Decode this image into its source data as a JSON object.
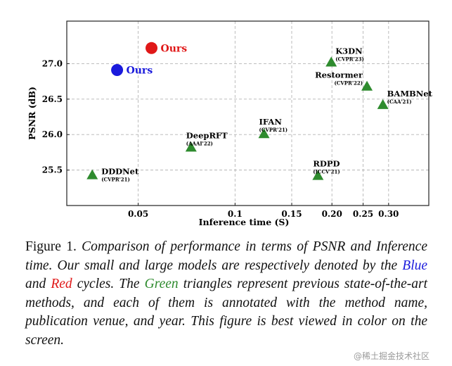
{
  "chart_data": {
    "type": "scatter",
    "xlabel": "Inference time (S)",
    "ylabel": "PSNR (dB)",
    "xscale": "log",
    "xlim": [
      0.03,
      0.4
    ],
    "ylim": [
      25.0,
      27.6
    ],
    "xticks": [
      0.05,
      0.1,
      0.15,
      0.2,
      0.25,
      0.3
    ],
    "xtick_labels": [
      "0.05",
      "0.1",
      "0.15",
      "0.20",
      "0.25",
      "0.30"
    ],
    "yticks": [
      25.5,
      26.0,
      26.5,
      27.0
    ],
    "ytick_labels": [
      "25.5",
      "26.0",
      "26.5",
      "27.0"
    ],
    "grid": true,
    "points": [
      {
        "name": "Ours",
        "venue": "",
        "x": 0.055,
        "y": 27.22,
        "marker": "circle",
        "color": "#e01818",
        "label_pos": "right"
      },
      {
        "name": "Ours",
        "venue": "",
        "x": 0.043,
        "y": 26.91,
        "marker": "circle",
        "color": "#1a1adc",
        "label_pos": "right"
      },
      {
        "name": "K3DN",
        "venue": "(CVPR'23)",
        "x": 0.199,
        "y": 27.02,
        "marker": "triangle",
        "color": "#2e8b2e",
        "label_pos": "above-right"
      },
      {
        "name": "Restormer",
        "venue": "(CVPR'22)",
        "x": 0.257,
        "y": 26.68,
        "marker": "triangle",
        "color": "#2e8b2e",
        "label_pos": "above-left"
      },
      {
        "name": "BAMBNet",
        "venue": "(CAA'21)",
        "x": 0.288,
        "y": 26.42,
        "marker": "triangle",
        "color": "#2e8b2e",
        "label_pos": "above-right"
      },
      {
        "name": "DeepRFT",
        "venue": "(AAAI'22)",
        "x": 0.073,
        "y": 25.82,
        "marker": "triangle",
        "color": "#2e8b2e",
        "label_pos": "above"
      },
      {
        "name": "IFAN",
        "venue": "(CVPR'21)",
        "x": 0.123,
        "y": 26.01,
        "marker": "triangle",
        "color": "#2e8b2e",
        "label_pos": "above"
      },
      {
        "name": "RDPD",
        "venue": "(ICCV'21)",
        "x": 0.181,
        "y": 25.42,
        "marker": "triangle",
        "color": "#2e8b2e",
        "label_pos": "above"
      },
      {
        "name": "DDDNet",
        "venue": "(CVPR'21)",
        "x": 0.036,
        "y": 25.43,
        "marker": "triangle",
        "color": "#2e8b2e",
        "label_pos": "right"
      }
    ]
  },
  "caption": {
    "lead": "Figure 1.",
    "part1": "Comparison of performance in terms of PSNR and Inference time. Our small and large models are respectively denoted by the",
    "blue": "Blue",
    "and": "and",
    "red": "Red",
    "part2": "cycles. The",
    "green": "Green",
    "part3": "triangles represent previous state-of-the-art methods, and each of them is annotated with the method name, publication venue, and year. This figure is best viewed in color on the screen."
  },
  "watermark": "@稀土掘金技术社区"
}
